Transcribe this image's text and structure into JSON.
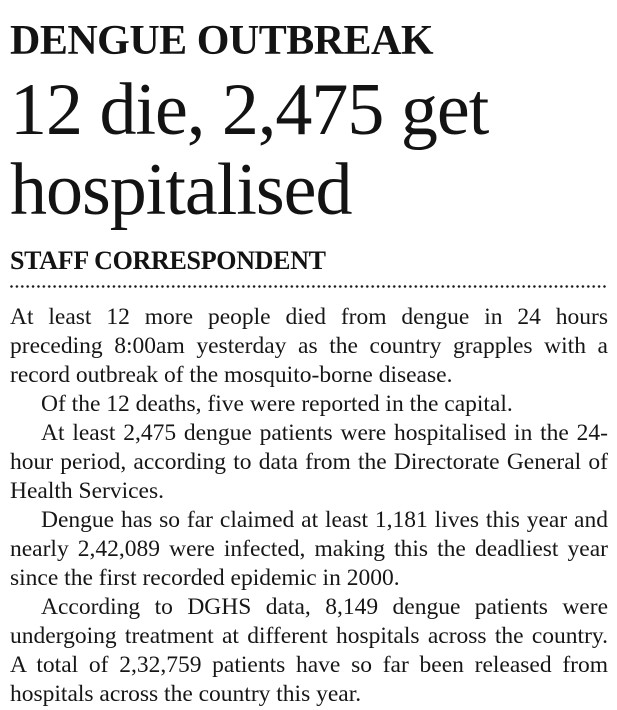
{
  "article": {
    "kicker": "DENGUE OUTBREAK",
    "headline": "12 die, 2,475 get hospitalised",
    "byline": "STAFF CORRESPONDENT",
    "paragraphs": [
      "At least 12 more people died from dengue in 24 hours preceding 8:00am yesterday as the country grapples with a record outbreak of the mosquito-borne disease.",
      "Of the 12 deaths, five were reported in the capital.",
      "At least 2,475 dengue patients were hospitalised in the 24-hour period, according to data from the Directorate General of Health Services.",
      "Dengue has so far claimed at least 1,181 lives this year and nearly 2,42,089 were infected, making this the deadliest year since the first recorded epidemic in 2000.",
      "According to DGHS data, 8,149 dengue patients were undergoing treatment at different hospitals across the country. A total of 2,32,759 patients have so far been released from hospitals across the country this year."
    ]
  },
  "colors": {
    "text": "#131313",
    "background": "#ffffff"
  }
}
